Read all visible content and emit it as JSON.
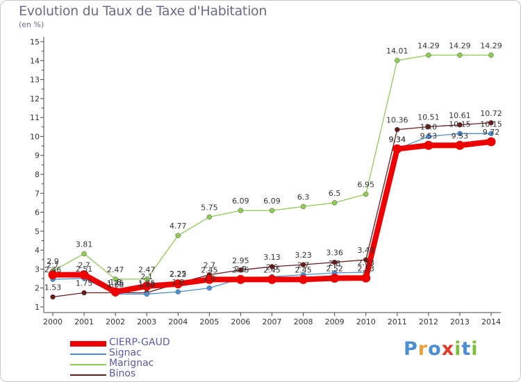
{
  "title": "Evolution du Taux de Taxe d'Habitation",
  "subtitle": "(en %)",
  "logo": {
    "letters": [
      {
        "ch": "P",
        "color": "#4a8fd4"
      },
      {
        "ch": "r",
        "color": "#e8a23a"
      },
      {
        "ch": "o",
        "color": "#4a8fd4"
      },
      {
        "ch": "x",
        "color": "#e03a2a"
      },
      {
        "ch": "i",
        "color": "#7bbf3a"
      },
      {
        "ch": "t",
        "color": "#4a8fd4"
      },
      {
        "ch": "i",
        "color": "#7bbf3a"
      }
    ]
  },
  "chart_data": {
    "type": "line",
    "x": [
      "2000",
      "2001",
      "2002",
      "2003",
      "2004",
      "2005",
      "2006",
      "2007",
      "2008",
      "2009",
      "2010",
      "2011",
      "2012",
      "2013",
      "2014"
    ],
    "ylim": [
      1,
      15
    ],
    "yticks": [
      1,
      2,
      3,
      4,
      5,
      6,
      7,
      8,
      9,
      10,
      11,
      12,
      13,
      14,
      15
    ],
    "grid": false,
    "legend_position": "bottom-left",
    "series": [
      {
        "name": "Binos",
        "color": "#6b1a1a",
        "values": [
          1.53,
          1.75,
          1.75,
          1.75,
          2.25,
          2.7,
          2.95,
          3.13,
          3.23,
          3.36,
          3.49,
          10.36,
          10.51,
          10.61,
          10.72
        ],
        "labels": [
          "1.53",
          "1.75",
          "1.75",
          "1.75",
          "2.25",
          "2.7",
          "2.95",
          "3.13",
          "3.23",
          "3.36",
          "3.49",
          "10.36",
          "10.51",
          "10.61",
          "10.72"
        ]
      },
      {
        "name": "Signac",
        "color": "#4a8fd4",
        "values": [
          2.46,
          2.51,
          1.68,
          1.68,
          1.8,
          2.0,
          2.5,
          2.6,
          2.7,
          2.8,
          2.83,
          9.34,
          10.0,
          10.15,
          10.15
        ],
        "labels": [
          "2.46",
          "2.51",
          "1.68",
          "1.68",
          "1.8",
          "2.0",
          "2.5",
          "2.6",
          "2.7",
          "2.8",
          "2.83",
          "9.34",
          "10.0",
          "10.15",
          "10.15"
        ]
      },
      {
        "name": "Marignac",
        "color": "#8ccc50",
        "values": [
          2.9,
          3.81,
          2.47,
          2.47,
          4.77,
          5.75,
          6.09,
          6.09,
          6.3,
          6.5,
          6.95,
          14.01,
          14.29,
          14.29,
          14.29
        ],
        "labels": [
          "2.9",
          "3.81",
          "2.47",
          "2.47",
          "4.77",
          "5.75",
          "6.09",
          "6.09",
          "6.3",
          "6.5",
          "6.95",
          "14.01",
          "14.29",
          "14.29",
          "14.29"
        ]
      },
      {
        "name": "CIERP-GAUD",
        "color": "#ee0000",
        "values": [
          2.7,
          2.7,
          1.8,
          2.1,
          2.22,
          2.45,
          2.45,
          2.45,
          2.45,
          2.52,
          2.53,
          9.34,
          9.53,
          9.53,
          9.72
        ],
        "labels": [
          "2.7",
          "2.7",
          "1.8",
          "2.1",
          "2.22",
          "2.45",
          "2.45",
          "2.45",
          "2.45",
          "2.52",
          "2.53",
          "9.34",
          "9.53",
          "9.53",
          "9.72"
        ]
      }
    ],
    "legend_order": [
      "CIERP-GAUD",
      "Signac",
      "Marignac",
      "Binos"
    ]
  }
}
